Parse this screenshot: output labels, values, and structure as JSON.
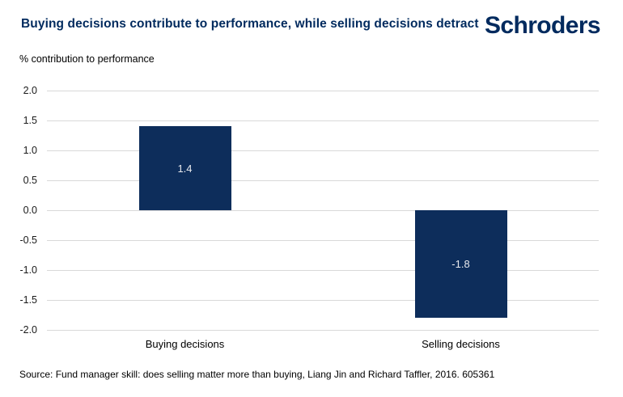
{
  "header": {
    "title": "Buying decisions contribute to performance, while selling decisions detract",
    "brand": "Schroders"
  },
  "chart_data": {
    "type": "bar",
    "title": "Buying decisions contribute to performance, while selling decisions detract",
    "ylabel": "% contribution to performance",
    "xlabel": "",
    "categories": [
      "Buying decisions",
      "Selling decisions"
    ],
    "values": [
      1.4,
      -1.8
    ],
    "bar_labels": [
      "1.4",
      "-1.8"
    ],
    "yticks": [
      2.0,
      1.5,
      1.0,
      0.5,
      0.0,
      -0.5,
      -1.0,
      -1.5,
      -2.0
    ],
    "ytick_labels": [
      "2.0",
      "1.5",
      "1.0",
      "0.5",
      "0.0",
      "-0.5",
      "-1.0",
      "-1.5",
      "-2.0"
    ],
    "ylim": [
      -2.0,
      2.0
    ],
    "grid": true,
    "legend": "none"
  },
  "footer": {
    "source": "Source: Fund manager skill: does selling matter more than buying, Liang Jin and Richard Taffler, 2016. 605361"
  },
  "colors": {
    "title_navy": "#002A5E",
    "bar_navy": "#0D2D5B",
    "gridline": "#D9D9D9",
    "bar_label_text": "#E8EAEE"
  }
}
